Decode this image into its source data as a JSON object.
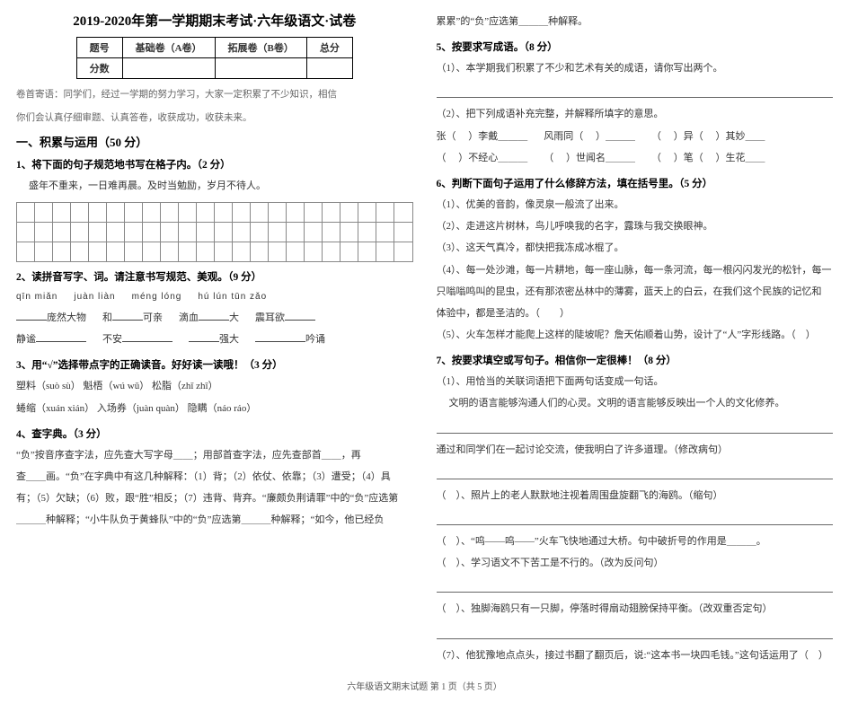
{
  "title": "2019-2020年第一学期期末考试·六年级语文·试卷",
  "score": {
    "h1": "题号",
    "h2": "基础卷（A卷）",
    "h3": "拓展卷（B卷）",
    "h4": "总分",
    "r": "分数"
  },
  "preface_a": "卷首寄语：同学们，经过一学期的努力学习，大家一定积累了不少知识，相信",
  "preface_b": "你们会认真仔细审题、认真答卷，收获成功，收获未来。",
  "sec1": "一、积累与运用（50 分）",
  "q1": "1、将下面的句子规范地书写在格子内。（2 分）",
  "q1_text": "盛年不重来，一日难再晨。及时当勉励，岁月不待人。",
  "q2": "2、读拼音写字、词。请注意书写规范、美观。（9 分）",
  "py": {
    "a": "qīn  miǎn",
    "b": "juàn  liàn",
    "c": "méng  lóng",
    "d": "hú  lún  tūn  zǎo"
  },
  "q2_row": {
    "a": "庞然大物",
    "b": "和",
    "b2": "可亲",
    "c": "滴血",
    "c2": "大",
    "d": "震耳欲"
  },
  "q2_row2": {
    "a": "静",
    "b": "不安",
    "c": "吟诵"
  },
  "q3": "3、用“√”选择带点字的正确读音。好好读一读哦！（3 分）",
  "q3a": "塑料（suò  sù）    魁梧（wú  wǔ）    松脂（zhǐ  zhī）",
  "q3b": "蜷缩（xuán  xián）  入场券（juàn  quàn）    隐瞒（náo  ráo）",
  "q4": "4、查字典。（3 分）",
  "q4a": "“负”按音序查字法，应先查大写字母＿＿；用部首查字法，应先查部首＿＿，再",
  "q4b": "查＿＿画。“负”在字典中有这几种解释：（1）背；（2）依仗、依靠；（3）遭受；（4）具",
  "q4c": "有；（5）欠缺；（6）败，跟“胜”相反；（7）违背、背弃。“廉颇负荆请罪”中的“负”应选第",
  "q4d": "＿＿＿种解释；“小牛队负于黄蜂队”中的“负”应选第＿＿＿种解释；“如今，他已经负",
  "right_top": "累累”的“负”应选第＿＿＿种解释。",
  "q5": "5、按要求写成语。（8 分）",
  "q5a": "（1）、本学期我们积累了不少和艺术有关的成语，请你写出两个。",
  "q5b": "（2）、把下列成语补充完整，并解释所填字的意思。",
  "q5c_a": "张（　 ）李戴＿＿＿",
  "q5c_b": "风雨同（　 ）＿＿＿",
  "q5c_c": "（　 ）异（　 ）其妙＿＿",
  "q5c_d": "（　 ）不经心＿＿＿",
  "q5c_e": "（　 ）世闻名＿＿＿",
  "q5c_f": "（　 ）笔（　 ）生花＿＿",
  "q6": "6、判断下面句子运用了什么修辞方法，填在括号里。（5 分）",
  "q6a": "（1）、优美的音韵，像灵泉一般流了出来。",
  "q6b": "（2）、走进这片树林，鸟儿呼唤我的名字，露珠与我交换眼神。",
  "q6c": "（3）、这天气真冷，都快把我冻成冰棍了。",
  "q6d": "（4）、每一处沙滩，每一片耕地，每一座山脉，每一条河流，每一根闪闪发光的松针，每一",
  "q6d2": "只嗡嗡鸣叫的昆虫，还有那浓密丛林中的薄雾，蓝天上的白云，在我们这个民族的记忆和",
  "q6d3": "体验中，都是圣洁的。（　　）",
  "q6e": "（5）、火车怎样才能爬上这样的陡坡呢？詹天佑顺着山势，设计了“人”字形线路。（　）",
  "q7": "7、按要求填空或写句子。相信你一定很棒！（8 分）",
  "q7a": "（1）、用恰当的关联词语把下面两句话变成一句话。",
  "q7a1": "文明的语言能够沟通人们的心灵。文明的语言能够反映出一个人的文化修养。",
  "q7b": "通过和同学们在一起讨论交流，使我明白了许多道理。（修改病句）",
  "q7c": "（　）、照片上的老人默默地注视着周围盘旋翻飞的海鸥。（缩句）",
  "q7d": "（　）、“呜——呜——”火车飞快地通过大桥。句中破折号的作用是＿＿＿。",
  "q7e": "（　）、学习语文不下苦工是不行的。（改为反问句）",
  "q7f": "（　）、独脚海鸥只有一只脚，停落时得扇动翅膀保持平衡。（改双重否定句）",
  "q7g": "（7）、他犹豫地点点头，接过书翻了翻页后，说:“这本书一块四毛钱。”这句话运用了（　）",
  "footer": "六年级语文期末试题  第 1 页（共 5 页）"
}
